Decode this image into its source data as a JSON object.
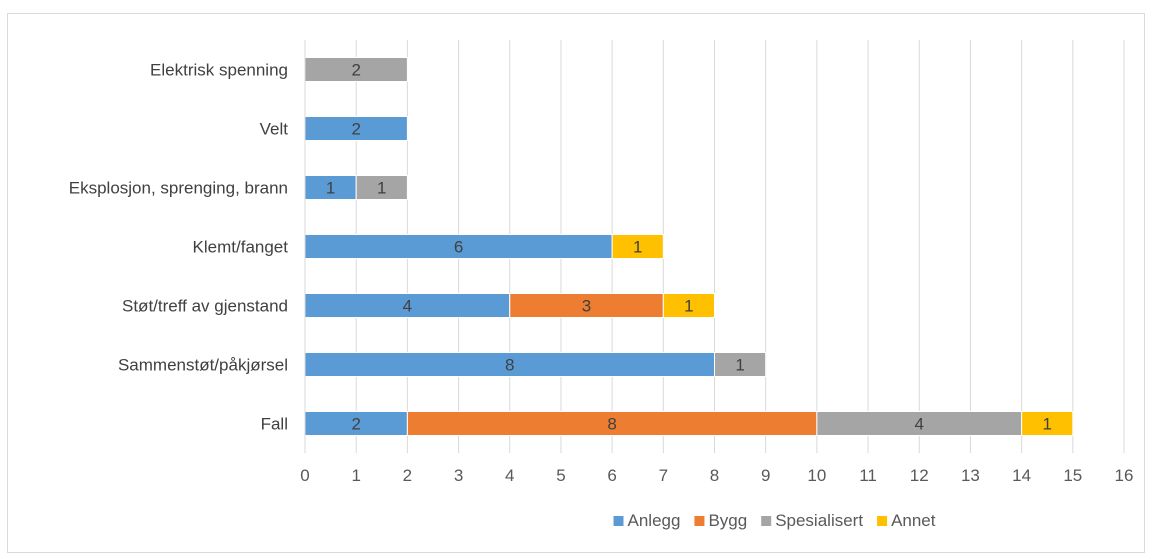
{
  "chart_data": {
    "type": "bar",
    "orientation": "horizontal",
    "stacked": true,
    "title": "",
    "xlabel": "",
    "ylabel": "",
    "xlim": [
      0,
      16
    ],
    "x_ticks": [
      0,
      1,
      2,
      3,
      4,
      5,
      6,
      7,
      8,
      9,
      10,
      11,
      12,
      13,
      14,
      15,
      16
    ],
    "grid": "vertical",
    "legend_position": "bottom",
    "categories": [
      "Fall",
      "Sammenstøt/påkjørsel",
      "Støt/treff av gjenstand",
      "Klemt/fanget",
      "Eksplosjon, sprenging, brann",
      "Velt",
      "Elektrisk spenning"
    ],
    "series": [
      {
        "name": "Anlegg",
        "color": "#5b9bd5",
        "values": [
          2,
          8,
          4,
          6,
          1,
          2,
          0
        ]
      },
      {
        "name": "Bygg",
        "color": "#ed7d31",
        "values": [
          8,
          0,
          3,
          0,
          0,
          0,
          0
        ]
      },
      {
        "name": "Spesialisert",
        "color": "#a5a5a5",
        "values": [
          4,
          1,
          0,
          0,
          1,
          0,
          2
        ]
      },
      {
        "name": "Annet",
        "color": "#ffc000",
        "values": [
          1,
          0,
          1,
          1,
          0,
          0,
          0
        ]
      }
    ]
  }
}
